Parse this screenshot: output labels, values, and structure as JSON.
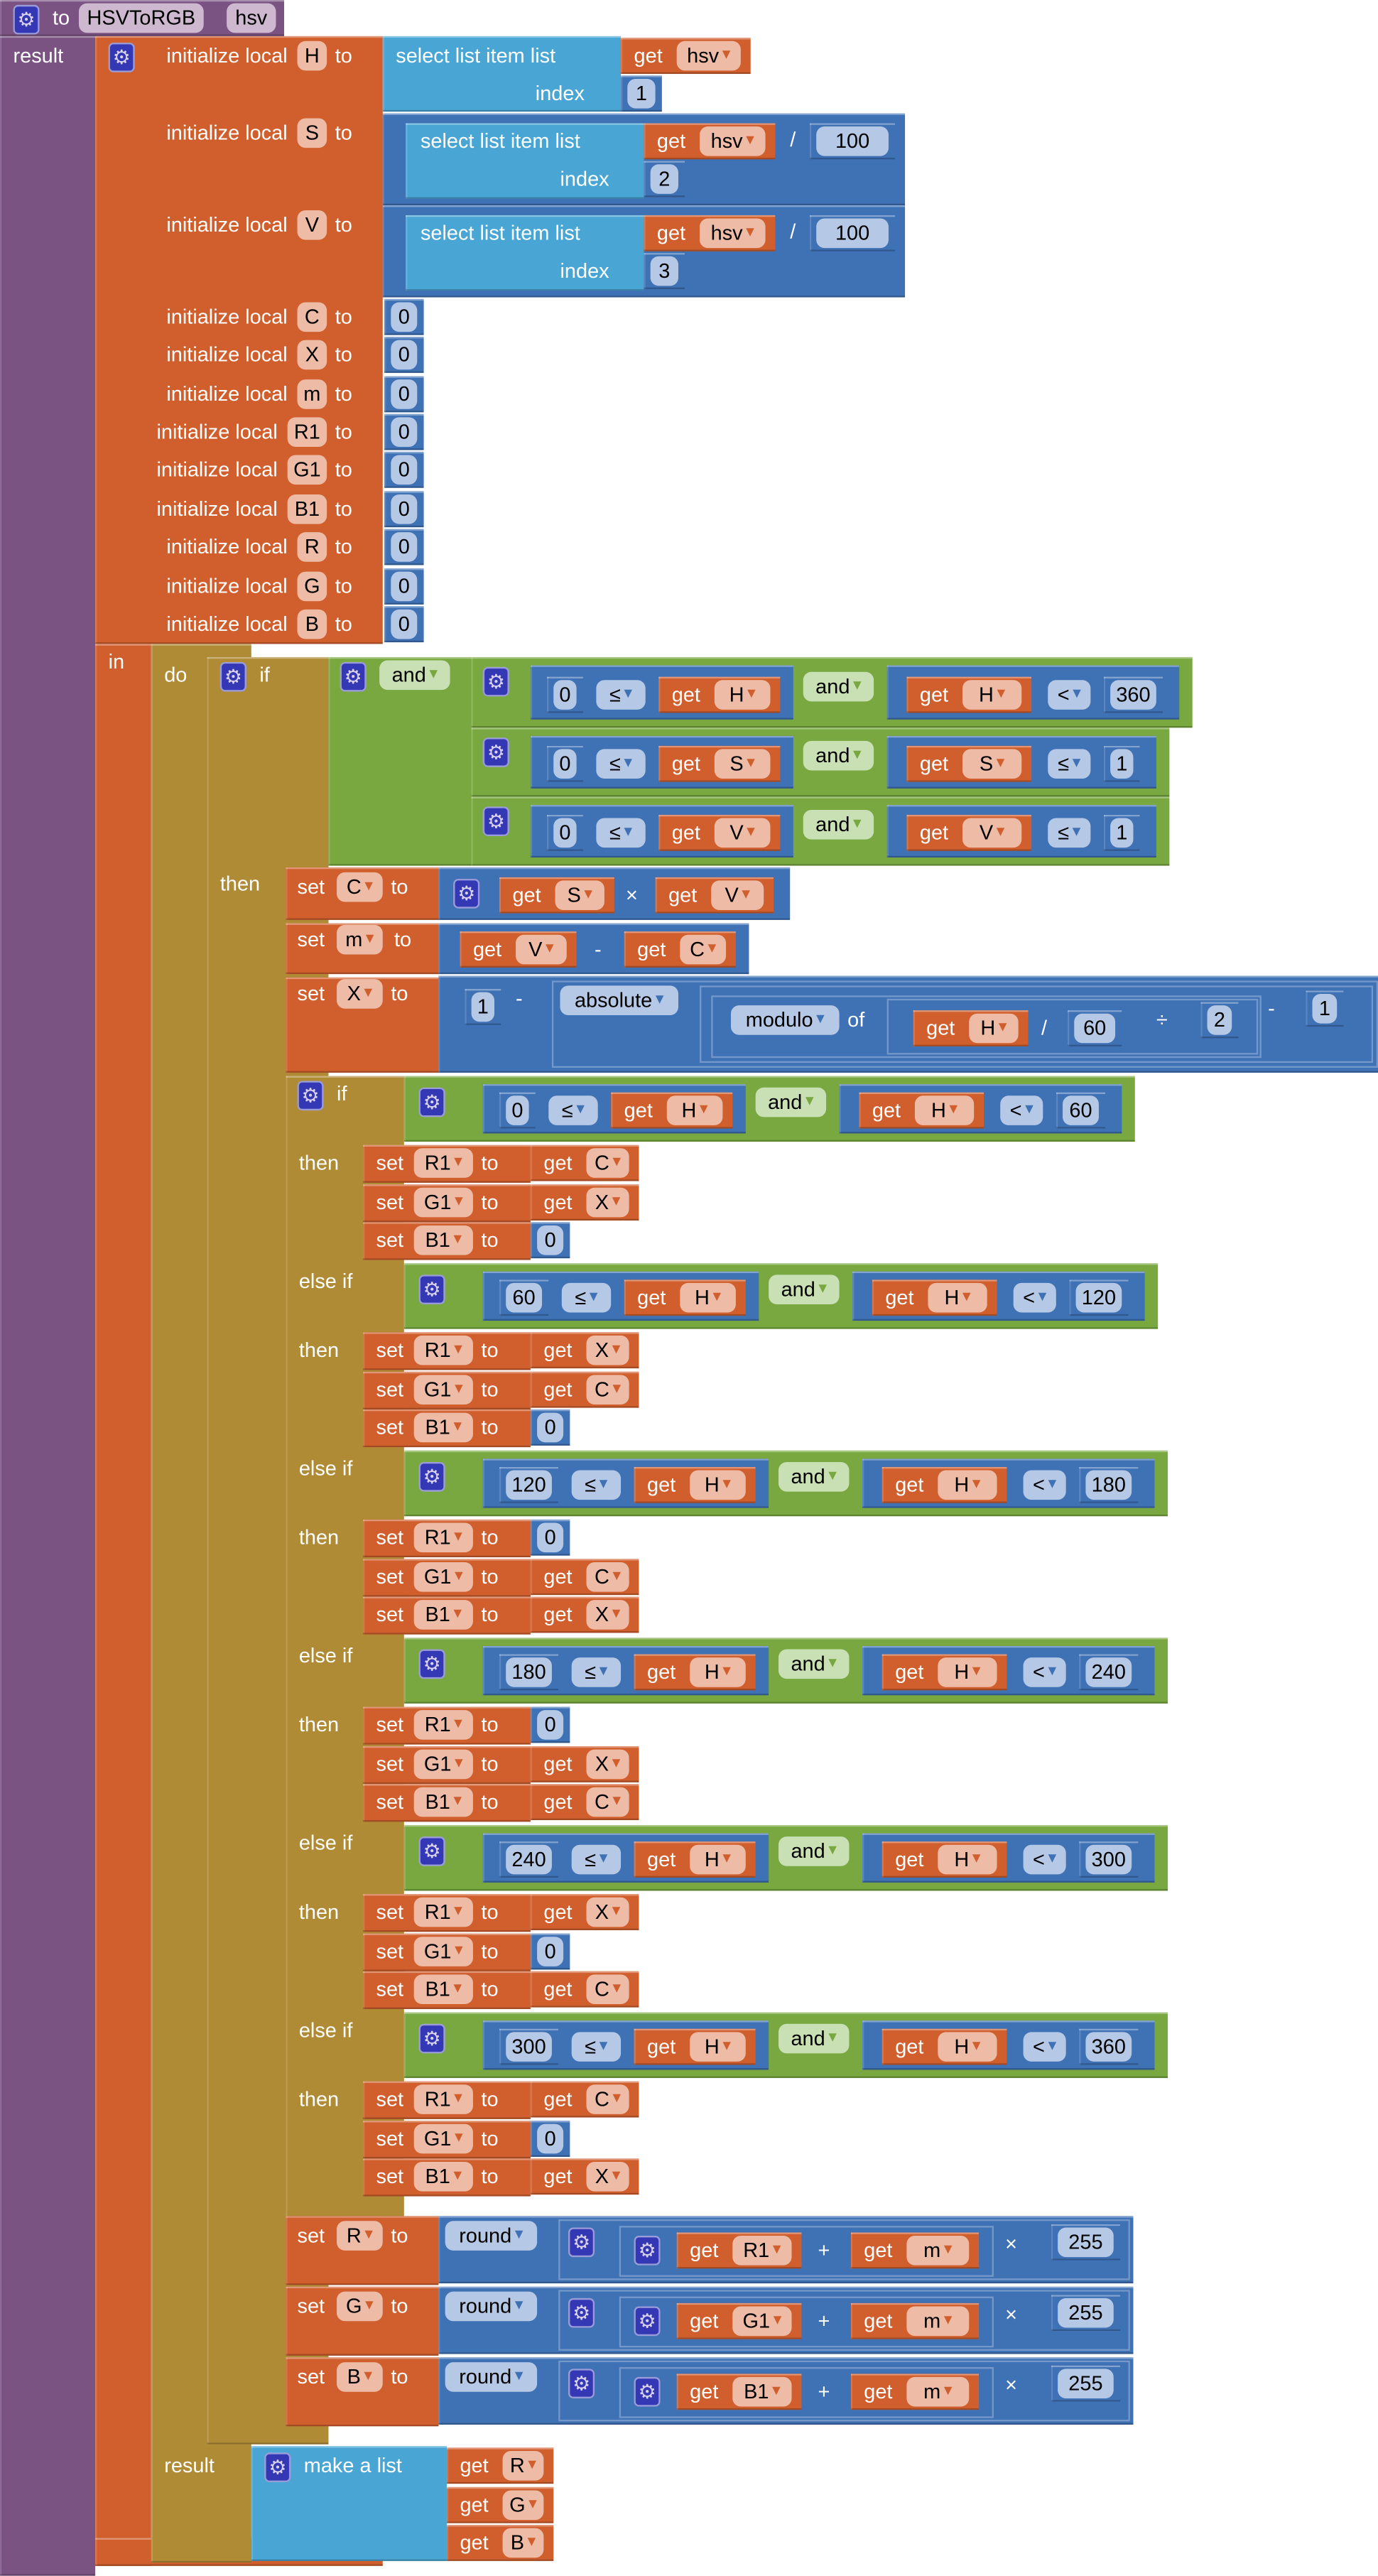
{
  "labels": {
    "to": "to",
    "result": "result",
    "init": "initialize local",
    "in": "in",
    "do": "do",
    "if": "if",
    "then": "then",
    "else_if": "else if",
    "set": "set",
    "get": "get",
    "select_list": "select list item  list",
    "index": "index",
    "and": "and",
    "of": "of",
    "make_list": "make a list"
  },
  "colors": {
    "procedure": "#7B5383",
    "variables": "#D05F2D",
    "lists": "#49A6D4",
    "math": "#3F71B5",
    "logic": "#78A83F",
    "control": "#B08B36"
  },
  "procedure": {
    "name": "HSVToRGB",
    "param": "hsv"
  },
  "locals": [
    {
      "name": "H",
      "list_var": "hsv",
      "index": "1"
    },
    {
      "name": "S",
      "list_var": "hsv",
      "index": "2",
      "operator": "/",
      "divisor": "100"
    },
    {
      "name": "V",
      "list_var": "hsv",
      "index": "3",
      "operator": "/",
      "divisor": "100"
    },
    {
      "name": "C",
      "value": "0"
    },
    {
      "name": "X",
      "value": "0"
    },
    {
      "name": "m",
      "value": "0"
    },
    {
      "name": "R1",
      "value": "0"
    },
    {
      "name": "G1",
      "value": "0"
    },
    {
      "name": "B1",
      "value": "0"
    },
    {
      "name": "R",
      "value": "0"
    },
    {
      "name": "G",
      "value": "0"
    },
    {
      "name": "B",
      "value": "0"
    }
  ],
  "validity": [
    {
      "lo": "0",
      "op1": "≤",
      "var": "H",
      "op2": "<",
      "hi": "360"
    },
    {
      "lo": "0",
      "op1": "≤",
      "var": "S",
      "op2": "≤",
      "hi": "1"
    },
    {
      "lo": "0",
      "op1": "≤",
      "var": "V",
      "op2": "≤",
      "hi": "1"
    }
  ],
  "calc": {
    "C": {
      "var": "C",
      "left": "S",
      "op": "×",
      "right": "V"
    },
    "m": {
      "var": "m",
      "left": "V",
      "op": "-",
      "right": "C"
    },
    "X": {
      "var": "X",
      "one": "1",
      "op1": "-",
      "absolute": "absolute",
      "modulo": "modulo",
      "hvar": "H",
      "divide_op": "/",
      "divisor": "60",
      "mod_op": "÷",
      "modulus": "2",
      "op2": "-",
      "last": "1"
    }
  },
  "branches": [
    {
      "lo": "0",
      "op1": "≤",
      "var": "H",
      "op2": "<",
      "hi": "60",
      "sets": [
        {
          "var": "R1",
          "src": "C"
        },
        {
          "var": "G1",
          "src": "X"
        },
        {
          "var": "B1",
          "src": "0"
        }
      ]
    },
    {
      "lo": "60",
      "op1": "≤",
      "var": "H",
      "op2": "<",
      "hi": "120",
      "sets": [
        {
          "var": "R1",
          "src": "X"
        },
        {
          "var": "G1",
          "src": "C"
        },
        {
          "var": "B1",
          "src": "0"
        }
      ]
    },
    {
      "lo": "120",
      "op1": "≤",
      "var": "H",
      "op2": "<",
      "hi": "180",
      "sets": [
        {
          "var": "R1",
          "src": "0"
        },
        {
          "var": "G1",
          "src": "C"
        },
        {
          "var": "B1",
          "src": "X"
        }
      ]
    },
    {
      "lo": "180",
      "op1": "≤",
      "var": "H",
      "op2": "<",
      "hi": "240",
      "sets": [
        {
          "var": "R1",
          "src": "0"
        },
        {
          "var": "G1",
          "src": "X"
        },
        {
          "var": "B1",
          "src": "C"
        }
      ]
    },
    {
      "lo": "240",
      "op1": "≤",
      "var": "H",
      "op2": "<",
      "hi": "300",
      "sets": [
        {
          "var": "R1",
          "src": "X"
        },
        {
          "var": "G1",
          "src": "0"
        },
        {
          "var": "B1",
          "src": "C"
        }
      ]
    },
    {
      "lo": "300",
      "op1": "≤",
      "var": "H",
      "op2": "<",
      "hi": "360",
      "sets": [
        {
          "var": "R1",
          "src": "C"
        },
        {
          "var": "G1",
          "src": "0"
        },
        {
          "var": "B1",
          "src": "X"
        }
      ]
    }
  ],
  "final": [
    {
      "var": "R",
      "round": "round",
      "src": "R1",
      "add_op": "+",
      "offset": "m",
      "mul_op": "×",
      "mult": "255"
    },
    {
      "var": "G",
      "round": "round",
      "src": "G1",
      "add_op": "+",
      "offset": "m",
      "mul_op": "×",
      "mult": "255"
    },
    {
      "var": "B",
      "round": "round",
      "src": "B1",
      "add_op": "+",
      "offset": "m",
      "mul_op": "×",
      "mult": "255"
    }
  ],
  "result_list": [
    "R",
    "G",
    "B"
  ]
}
